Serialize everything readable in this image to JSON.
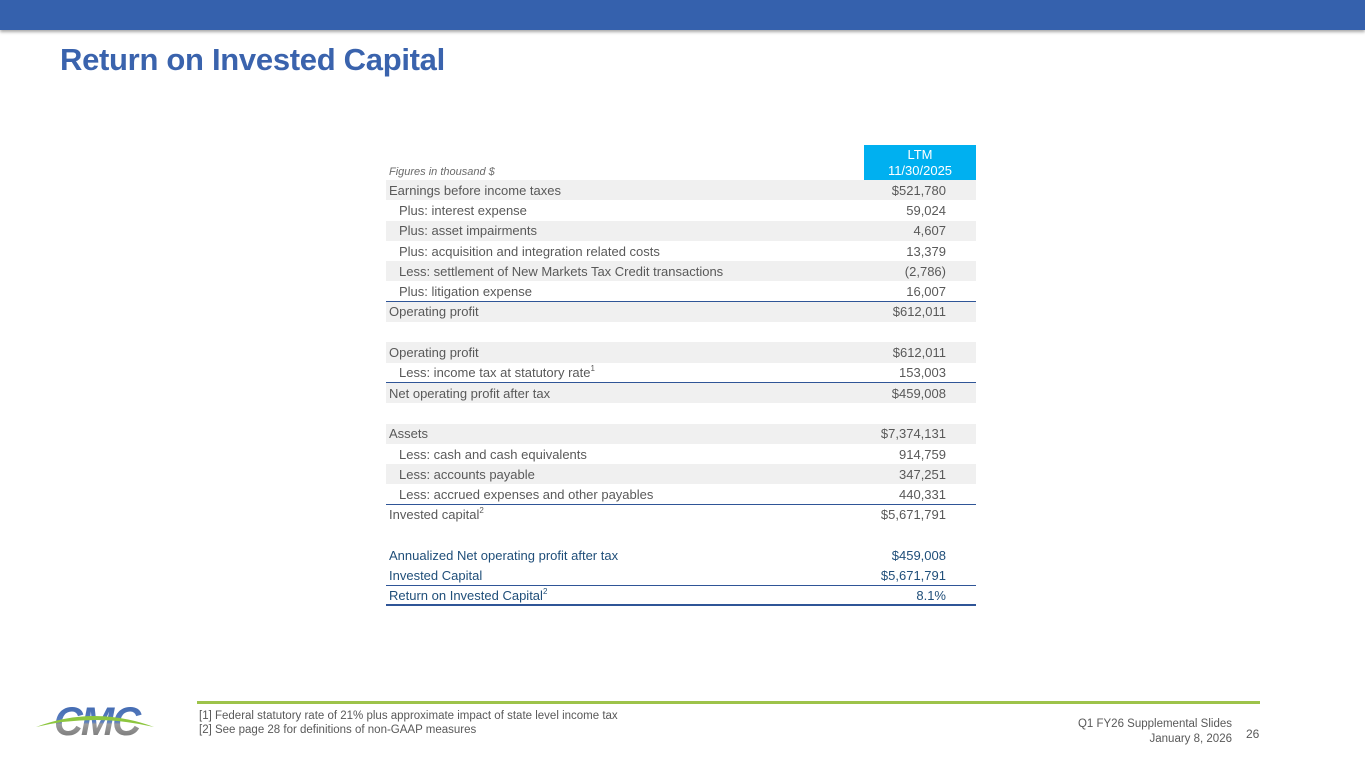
{
  "title": "Return on Invested Capital",
  "table": {
    "caption": "Figures in thousand $",
    "header": [
      "LTM",
      "11/30/2025"
    ],
    "rows": [
      {
        "label": "Earnings before income taxes",
        "value": "$521,780"
      },
      {
        "label": "Plus: interest expense",
        "value": "59,024"
      },
      {
        "label": "Plus: asset impairments",
        "value": "4,607"
      },
      {
        "label": "Plus: acquisition and integration related costs",
        "value": "13,379"
      },
      {
        "label": "Less: settlement of New Markets Tax Credit transactions",
        "value": "(2,786)"
      },
      {
        "label": "Plus: litigation expense",
        "value": "16,007"
      },
      {
        "label": "Operating profit",
        "value": "$612,011"
      },
      {
        "label": "Operating profit",
        "value": "$612,011"
      },
      {
        "label": "Less: income tax at statutory rate",
        "sup": "1",
        "value": "153,003"
      },
      {
        "label": "Net operating profit after tax",
        "value": "$459,008"
      },
      {
        "label": "Assets",
        "value": "$7,374,131"
      },
      {
        "label": "Less: cash and cash equivalents",
        "value": "914,759"
      },
      {
        "label": "Less: accounts payable",
        "value": "347,251"
      },
      {
        "label": "Less: accrued expenses and other payables",
        "value": "440,331"
      },
      {
        "label": "Invested capital",
        "sup": "2",
        "value": "$5,671,791"
      },
      {
        "label": "Annualized Net operating profit after tax",
        "value": "$459,008"
      },
      {
        "label": "Invested Capital",
        "value": "$5,671,791"
      },
      {
        "label": "Return on Invested Capital",
        "sup": "2",
        "value": "8.1%"
      }
    ]
  },
  "footnotes": [
    "[1] Federal statutory rate of 21% plus approximate impact of state level income tax",
    "[2] See page 28 for definitions of non-GAAP measures"
  ],
  "footer": {
    "deck": "Q1 FY26 Supplemental Slides",
    "date": "January 8, 2026",
    "page": "26"
  },
  "logo_text": "CMC",
  "colors": {
    "brand_blue": "#3561ad",
    "header_cyan": "#00b0f0",
    "accent_green": "#9dc34a"
  }
}
